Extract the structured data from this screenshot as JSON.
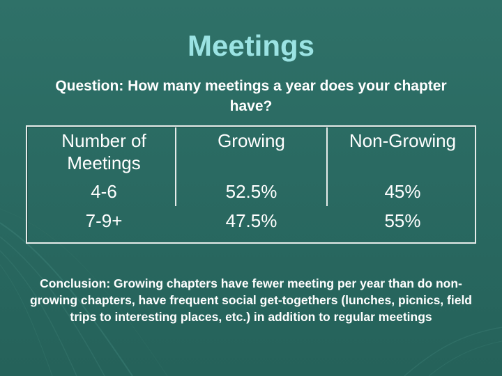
{
  "slide": {
    "title": "Meetings",
    "question": "Question: How many meetings a year does your chapter have?",
    "table": {
      "headers": [
        "Number of Meetings",
        "Growing",
        "Non-Growing"
      ],
      "rows": [
        [
          "4-6",
          "52.5%",
          "45%"
        ],
        [
          "7-9+",
          "47.5%",
          "55%"
        ]
      ]
    },
    "conclusion": "Conclusion: Growing chapters have fewer meeting per year than do non-growing chapters, have frequent social get-togethers (lunches, picnics, field trips to interesting places, etc.) in addition to regular meetings"
  },
  "colors": {
    "background": "#2a6a62",
    "title": "#9be3e3",
    "text": "#ffffff",
    "table_border": "#e6ecea"
  }
}
